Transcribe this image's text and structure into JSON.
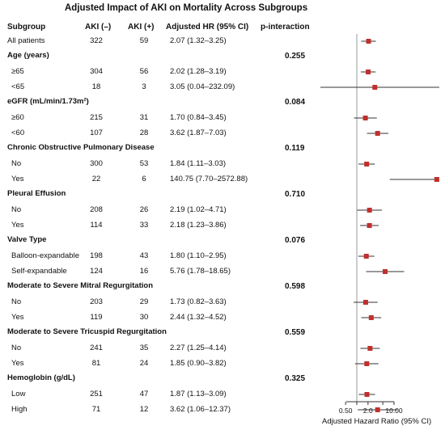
{
  "chart_data": {
    "type": "forest",
    "title": "Adjusted Impact of AKI on Mortality Across Subgroups",
    "columns": [
      "Subgroup",
      "AKI (–)",
      "AKI (+)",
      "Adjusted HR (95% CI)",
      "p-interaction"
    ],
    "xlabel": "Adjusted Hazard Ratio (95% CI)",
    "xscale": "log",
    "xticks": [
      "0.50",
      "2.0",
      "10.00"
    ],
    "reference_line": 1,
    "marker_color": "#c0302d",
    "rows": [
      {
        "kind": "data",
        "label": "All patients",
        "neg": "322",
        "pos": "59",
        "ci_text": "2.07 (1.32–3.25)",
        "hr": 2.07,
        "lo": 1.32,
        "hi": 3.25
      },
      {
        "kind": "group",
        "label": "Age (years)",
        "p": "0.255"
      },
      {
        "kind": "data",
        "label": "≥65",
        "neg": "304",
        "pos": "56",
        "ci_text": "2.02 (1.28–3.19)",
        "hr": 2.02,
        "lo": 1.28,
        "hi": 3.19
      },
      {
        "kind": "data",
        "label": "<65",
        "neg": "18",
        "pos": "3",
        "ci_text": "3.05 (0.04–232.09)",
        "hr": 3.05,
        "lo": 0.04,
        "hi": 232.09
      },
      {
        "kind": "group",
        "label": "eGFR (mL/min/1.73m²)",
        "p": "0.084"
      },
      {
        "kind": "data",
        "label": "≥60",
        "neg": "215",
        "pos": "31",
        "ci_text": "1.70 (0.84–3.45)",
        "hr": 1.7,
        "lo": 0.84,
        "hi": 3.45
      },
      {
        "kind": "data",
        "label": "<60",
        "neg": "107",
        "pos": "28",
        "ci_text": "3.62 (1.87–7.03)",
        "hr": 3.62,
        "lo": 1.87,
        "hi": 7.03
      },
      {
        "kind": "group",
        "label": "Chronic Obstructive Pulmonary Disease",
        "p": "0.119"
      },
      {
        "kind": "data",
        "label": "No",
        "neg": "300",
        "pos": "53",
        "ci_text": "1.84 (1.11–3.03)",
        "hr": 1.84,
        "lo": 1.11,
        "hi": 3.03
      },
      {
        "kind": "data",
        "label": "Yes",
        "neg": "22",
        "pos": "6",
        "ci_text": "140.75 (7.70–2572.88)",
        "hr": 140.75,
        "lo": 7.7,
        "hi": 2572.88
      },
      {
        "kind": "group",
        "label": "Pleural Effusion",
        "p": "0.710"
      },
      {
        "kind": "data",
        "label": "No",
        "neg": "208",
        "pos": "26",
        "ci_text": "2.19 (1.02–4.71)",
        "hr": 2.19,
        "lo": 1.02,
        "hi": 4.71
      },
      {
        "kind": "data",
        "label": "Yes",
        "neg": "114",
        "pos": "33",
        "ci_text": "2.18 (1.23–3.86)",
        "hr": 2.18,
        "lo": 1.23,
        "hi": 3.86
      },
      {
        "kind": "group",
        "label": "Valve Type",
        "p": "0.076"
      },
      {
        "kind": "data",
        "label": "Balloon-expandable",
        "neg": "198",
        "pos": "43",
        "ci_text": "1.80 (1.10–2.95)",
        "hr": 1.8,
        "lo": 1.1,
        "hi": 2.95
      },
      {
        "kind": "data",
        "label": "Self-expandable",
        "neg": "124",
        "pos": "16",
        "ci_text": "5.76 (1.78–18.65)",
        "hr": 5.76,
        "lo": 1.78,
        "hi": 18.65
      },
      {
        "kind": "group",
        "label": "Moderate to Severe Mitral Regurgitation",
        "p": "0.598"
      },
      {
        "kind": "data",
        "label": "No",
        "neg": "203",
        "pos": "29",
        "ci_text": "1.73 (0.82–3.63)",
        "hr": 1.73,
        "lo": 0.82,
        "hi": 3.63
      },
      {
        "kind": "data",
        "label": "Yes",
        "neg": "119",
        "pos": "30",
        "ci_text": "2.44 (1.32–4.52)",
        "hr": 2.44,
        "lo": 1.32,
        "hi": 4.52
      },
      {
        "kind": "group",
        "label": "Moderate to Severe Tricuspid Regurgitation",
        "p": "0.559"
      },
      {
        "kind": "data",
        "label": "No",
        "neg": "241",
        "pos": "35",
        "ci_text": "2.27 (1.25–4.14)",
        "hr": 2.27,
        "lo": 1.25,
        "hi": 4.14
      },
      {
        "kind": "data",
        "label": "Yes",
        "neg": "81",
        "pos": "24",
        "ci_text": "1.85 (0.90–3.82)",
        "hr": 1.85,
        "lo": 0.9,
        "hi": 3.82
      },
      {
        "kind": "group",
        "label": "Hemoglobin (g/dL)",
        "p": "0.325"
      },
      {
        "kind": "data",
        "label": "Low",
        "neg": "251",
        "pos": "47",
        "ci_text": "1.87 (1.13–3.09)",
        "hr": 1.87,
        "lo": 1.13,
        "hi": 3.09
      },
      {
        "kind": "data",
        "label": "High",
        "neg": "71",
        "pos": "12",
        "ci_text": "3.62 (1.06–12.37)",
        "hr": 3.62,
        "lo": 1.06,
        "hi": 12.37
      }
    ]
  }
}
